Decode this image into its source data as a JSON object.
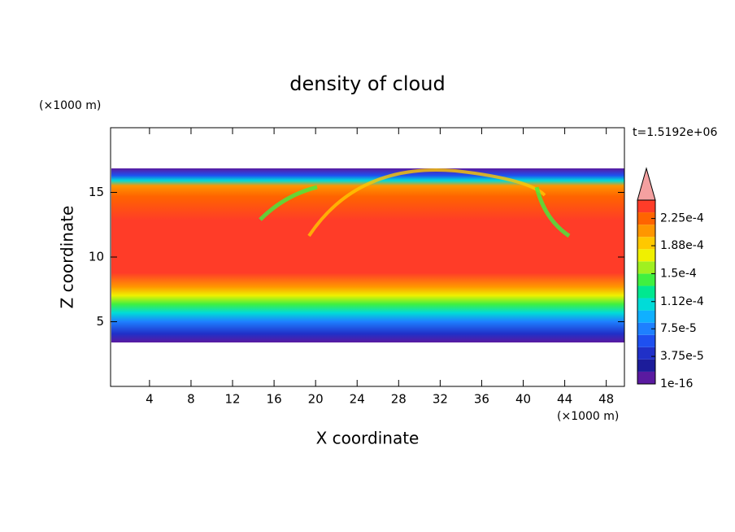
{
  "chart_data": {
    "type": "contour",
    "title": "density of cloud",
    "x_label": "X coordinate",
    "y_label": "Z coordinate",
    "x_unit": "(×1000 m)",
    "y_unit": "(×1000 m)",
    "time_label": "t=1.5192e+06",
    "xlim": [
      0.25,
      49.75
    ],
    "xticks": [
      4,
      8,
      12,
      16,
      20,
      24,
      28,
      32,
      36,
      40,
      44,
      48
    ],
    "ylim": [
      0,
      20
    ],
    "yticks": [
      5,
      10,
      15
    ],
    "colorbar": {
      "clim": [
        0,
        0.00025
      ],
      "ticks": [
        {
          "value": 1e-16,
          "label": "1e-16"
        },
        {
          "value": 3.75e-05,
          "label": "3.75e-5"
        },
        {
          "value": 7.5e-05,
          "label": "7.5e-5"
        },
        {
          "value": 0.000112,
          "label": "1.12e-4"
        },
        {
          "value": 0.00015,
          "label": "1.5e-4"
        },
        {
          "value": 0.000188,
          "label": "1.88e-4"
        },
        {
          "value": 0.000225,
          "label": "2.25e-4"
        }
      ],
      "colors": [
        "#5a1aa0",
        "#1c1c9a",
        "#2030c8",
        "#1e50f0",
        "#1e80ff",
        "#10b0ff",
        "#00dcd8",
        "#00e890",
        "#40f040",
        "#a0f020",
        "#f0f000",
        "#ffc800",
        "#ff9600",
        "#ff6400",
        "#ff3c28"
      ],
      "extend_color": "#f4a0a0"
    }
  }
}
